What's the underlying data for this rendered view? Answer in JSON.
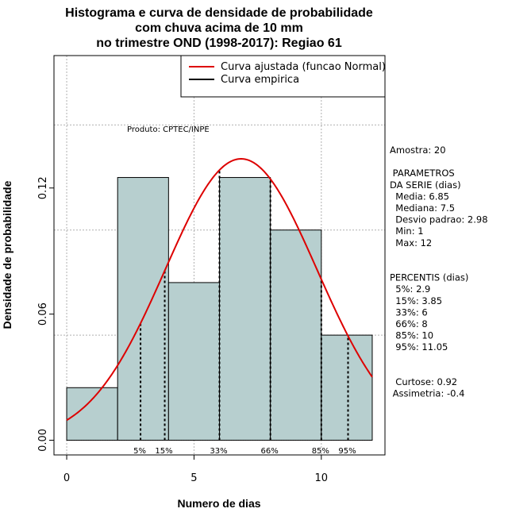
{
  "chart_data": {
    "type": "bar",
    "title_lines": [
      "Histograma e curva de densidade de probabilidade",
      "com chuva acima de 10 mm",
      "no trimestre OND (1998-2017): Regiao 61"
    ],
    "xlabel": "Numero de dias",
    "ylabel": "Densidade de probabilidade",
    "xlim": [
      -0.5,
      12.5
    ],
    "ylim": [
      -0.007,
      0.183
    ],
    "x_ticks": [
      0,
      5,
      10
    ],
    "y_ticks": [
      0.0,
      0.06,
      0.12
    ],
    "y_tick_labels": [
      "0.00",
      "0.06",
      "0.12"
    ],
    "grid_x": [
      0,
      5,
      10
    ],
    "grid_y": [
      0.05,
      0.1,
      0.15
    ],
    "bins": [
      {
        "start": 0,
        "end": 2,
        "density": 0.025
      },
      {
        "start": 2,
        "end": 4,
        "density": 0.125
      },
      {
        "start": 4,
        "end": 6,
        "density": 0.075
      },
      {
        "start": 6,
        "end": 8,
        "density": 0.125
      },
      {
        "start": 8,
        "end": 10,
        "density": 0.1
      },
      {
        "start": 10,
        "end": 12,
        "density": 0.05
      }
    ],
    "bar_color": "#b7cfcf",
    "normal_fit": {
      "mean": 6.85,
      "sd": 2.98,
      "color": "#dd0000"
    },
    "percentile_lines": [
      {
        "x": 2.9,
        "label": "5%"
      },
      {
        "x": 3.85,
        "label": "15%"
      },
      {
        "x": 6,
        "label": "33%"
      },
      {
        "x": 8,
        "label": "66%"
      },
      {
        "x": 10,
        "label": "85%"
      },
      {
        "x": 11.05,
        "label": "95%"
      }
    ],
    "legend": {
      "position": "top-right",
      "entries": [
        {
          "label": "Curva ajustada (funcao Normal)",
          "color": "#dd0000"
        },
        {
          "label": "Curva empirica",
          "color": "#000000"
        }
      ]
    },
    "annotation": "Produto: CPTEC/INPE",
    "stats_lines": [
      "Amostra: 20",
      "",
      " PARAMETROS",
      "DA SERIE (dias)",
      "  Media: 6.85",
      "  Mediana: 7.5",
      "  Desvio padrao: 2.98",
      "  Min: 1",
      "  Max: 12",
      "",
      "",
      "PERCENTIS (dias)",
      "  5%: 2.9",
      "  15%: 3.85",
      "  33%: 6",
      "  66%: 8",
      "  85%: 10",
      "  95%: 11.05",
      "",
      "",
      "  Curtose: 0.92",
      " Assimetria: -0.4"
    ]
  }
}
